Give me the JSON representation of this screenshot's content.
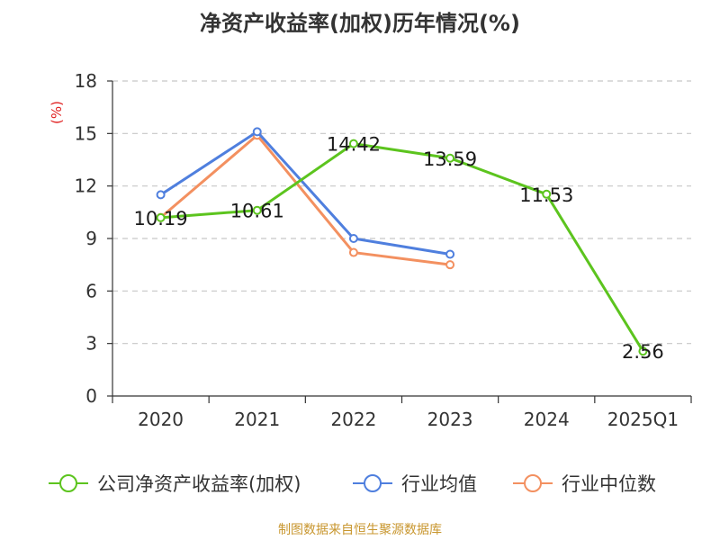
{
  "chart_data": {
    "type": "line",
    "title": "净资产收益率(加权)历年情况(%)",
    "ylabel": "(%)",
    "xlabel": "",
    "categories": [
      "2020",
      "2021",
      "2022",
      "2023",
      "2024",
      "2025Q1"
    ],
    "ylim": [
      0,
      18
    ],
    "yticks": [
      0,
      3,
      6,
      9,
      12,
      15,
      18
    ],
    "grid": true,
    "legend_position": "bottom",
    "series": [
      {
        "name": "公司净资产收益率(加权)",
        "color": "#5cc41e",
        "values": [
          10.19,
          10.61,
          14.42,
          13.59,
          11.53,
          2.56
        ],
        "labels": [
          "10.19",
          "10.61",
          "14.42",
          "13.59",
          "11.53",
          "2.56"
        ]
      },
      {
        "name": "行业均值",
        "color": "#4f7fde",
        "values": [
          11.5,
          15.1,
          9.0,
          8.1,
          null,
          null
        ]
      },
      {
        "name": "行业中位数",
        "color": "#f39060",
        "values": [
          10.2,
          14.9,
          8.2,
          7.5,
          null,
          null
        ]
      }
    ]
  },
  "source": "制图数据来自恒生聚源数据库"
}
